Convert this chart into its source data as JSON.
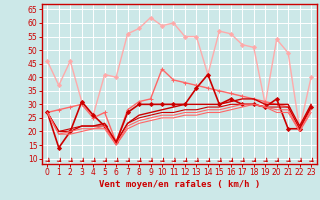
{
  "title": "",
  "xlabel": "Vent moyen/en rafales ( km/h )",
  "xlabel_color": "#cc0000",
  "bg_color": "#cce8e8",
  "grid_color": "#aaaadd",
  "axis_color": "#cc0000",
  "tick_color": "#cc0000",
  "xlim": [
    -0.5,
    23.5
  ],
  "ylim": [
    8,
    67
  ],
  "yticks": [
    10,
    15,
    20,
    25,
    30,
    35,
    40,
    45,
    50,
    55,
    60,
    65
  ],
  "xticks": [
    0,
    1,
    2,
    3,
    4,
    5,
    6,
    7,
    8,
    9,
    10,
    11,
    12,
    13,
    14,
    15,
    16,
    17,
    18,
    19,
    20,
    21,
    22,
    23
  ],
  "series": [
    {
      "x": [
        0,
        1,
        2,
        3,
        4,
        5,
        6,
        7,
        8,
        9,
        10,
        11,
        12,
        13,
        14,
        15,
        16,
        17,
        18,
        19,
        20,
        21,
        22,
        23
      ],
      "y": [
        46,
        37,
        46,
        31,
        26,
        41,
        40,
        56,
        58,
        62,
        59,
        60,
        55,
        55,
        41,
        57,
        56,
        52,
        51,
        30,
        54,
        49,
        21,
        40
      ],
      "color": "#ffaaaa",
      "marker": "D",
      "markersize": 2,
      "linewidth": 1.0
    },
    {
      "x": [
        0,
        1,
        2,
        3,
        4,
        5,
        6,
        7,
        8,
        9,
        10,
        11,
        12,
        13,
        14,
        15,
        16,
        17,
        18,
        19,
        20,
        21,
        22,
        23
      ],
      "y": [
        27,
        28,
        29,
        30,
        25,
        27,
        16,
        28,
        31,
        32,
        43,
        39,
        38,
        37,
        36,
        35,
        34,
        33,
        32,
        31,
        30,
        29,
        21,
        29
      ],
      "color": "#ff6666",
      "marker": "+",
      "markersize": 3,
      "linewidth": 1.0
    },
    {
      "x": [
        0,
        1,
        2,
        3,
        4,
        5,
        6,
        7,
        8,
        9,
        10,
        11,
        12,
        13,
        14,
        15,
        16,
        17,
        18,
        19,
        20,
        21,
        22,
        23
      ],
      "y": [
        27,
        14,
        20,
        31,
        26,
        22,
        16,
        27,
        30,
        30,
        30,
        30,
        30,
        36,
        41,
        30,
        32,
        30,
        30,
        29,
        32,
        21,
        21,
        29
      ],
      "color": "#cc0000",
      "marker": "D",
      "markersize": 2,
      "linewidth": 1.2
    },
    {
      "x": [
        0,
        1,
        2,
        3,
        4,
        5,
        6,
        7,
        8,
        9,
        10,
        11,
        12,
        13,
        14,
        15,
        16,
        17,
        18,
        19,
        20,
        21,
        22,
        23
      ],
      "y": [
        27,
        20,
        20,
        22,
        22,
        23,
        16,
        23,
        26,
        27,
        28,
        29,
        30,
        30,
        30,
        30,
        31,
        32,
        32,
        30,
        30,
        30,
        22,
        30
      ],
      "color": "#cc0000",
      "marker": null,
      "linewidth": 1.0
    },
    {
      "x": [
        0,
        1,
        2,
        3,
        4,
        5,
        6,
        7,
        8,
        9,
        10,
        11,
        12,
        13,
        14,
        15,
        16,
        17,
        18,
        19,
        20,
        21,
        22,
        23
      ],
      "y": [
        27,
        20,
        21,
        22,
        22,
        22,
        16,
        23,
        25,
        26,
        27,
        27,
        28,
        28,
        29,
        29,
        30,
        30,
        30,
        29,
        29,
        29,
        21,
        29
      ],
      "color": "#cc0000",
      "marker": null,
      "linewidth": 0.8
    },
    {
      "x": [
        0,
        1,
        2,
        3,
        4,
        5,
        6,
        7,
        8,
        9,
        10,
        11,
        12,
        13,
        14,
        15,
        16,
        17,
        18,
        19,
        20,
        21,
        22,
        23
      ],
      "y": [
        27,
        19,
        20,
        21,
        21,
        22,
        15,
        22,
        24,
        25,
        26,
        26,
        27,
        27,
        28,
        28,
        29,
        30,
        30,
        29,
        28,
        28,
        20,
        28
      ],
      "color": "#ff6666",
      "marker": null,
      "linewidth": 0.8
    },
    {
      "x": [
        0,
        1,
        2,
        3,
        4,
        5,
        6,
        7,
        8,
        9,
        10,
        11,
        12,
        13,
        14,
        15,
        16,
        17,
        18,
        19,
        20,
        21,
        22,
        23
      ],
      "y": [
        27,
        19,
        19,
        20,
        21,
        21,
        15,
        21,
        23,
        24,
        25,
        25,
        26,
        26,
        27,
        27,
        28,
        29,
        30,
        29,
        27,
        27,
        20,
        27
      ],
      "color": "#ff6666",
      "marker": null,
      "linewidth": 0.8
    }
  ],
  "arrow_color": "#cc0000"
}
